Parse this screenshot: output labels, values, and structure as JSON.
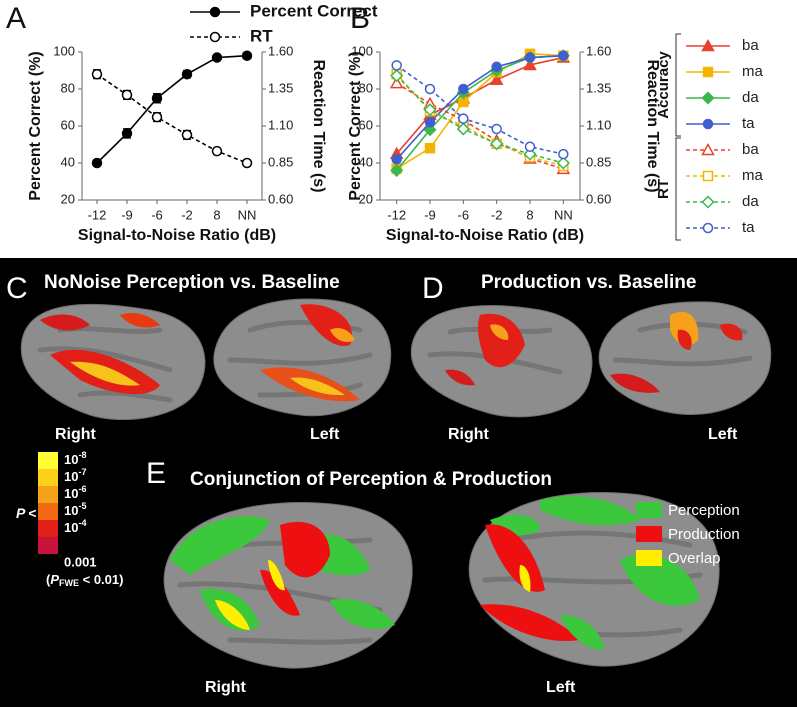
{
  "chart_data": [
    {
      "type": "line",
      "panel_label": "A",
      "categories": [
        "-12",
        "-9",
        "-6",
        "-2",
        "8",
        "NN"
      ],
      "xlabel": "Signal-to-Noise Ratio (dB)",
      "ylabel": "Percent Correct (%)",
      "y2label": "Reaction Time (s)",
      "ylim": [
        20,
        100
      ],
      "yticks": [
        20,
        40,
        60,
        80,
        100
      ],
      "y2lim": [
        0.6,
        1.6
      ],
      "y2ticks": [
        {
          "value": 0.6,
          "label": "0.60"
        },
        {
          "value": 0.85,
          "label": "0.85"
        },
        {
          "value": 1.1,
          "label": "1.10"
        },
        {
          "value": 1.35,
          "label": "1.35"
        },
        {
          "value": 1.6,
          "label": "1.60"
        }
      ],
      "legend": "top",
      "series": [
        {
          "name": "Percent Correct",
          "color": "#000000",
          "dash": false,
          "marker": "circle",
          "filled": true,
          "values": [
            40,
            56,
            75,
            88,
            97,
            98
          ],
          "errors": [
            1.5,
            2.5,
            2.5,
            2,
            1,
            1
          ]
        },
        {
          "name": "RT",
          "color": "#000000",
          "dash": true,
          "marker": "circle",
          "filled": false,
          "axis": "y2",
          "values": [
            1.45,
            1.31,
            1.16,
            1.04,
            0.93,
            0.85
          ],
          "errors": [
            0.03,
            0.03,
            0.03,
            0.03,
            0.02,
            0.02
          ]
        }
      ]
    },
    {
      "type": "line",
      "panel_label": "B",
      "categories": [
        "-12",
        "-9",
        "-6",
        "-2",
        "8",
        "NN"
      ],
      "xlabel": "Signal-to-Noise Ratio (dB)",
      "ylabel": "Percent Correct (%)",
      "y2label": "Reaction Time (s)",
      "ylim": [
        20,
        100
      ],
      "yticks": [
        20,
        40,
        60,
        80,
        100
      ],
      "y2lim": [
        0.6,
        1.6
      ],
      "y2ticks": [
        {
          "value": 0.6,
          "label": "0.60"
        },
        {
          "value": 0.85,
          "label": "0.85"
        },
        {
          "value": 1.1,
          "label": "1.10"
        },
        {
          "value": 1.35,
          "label": "1.35"
        },
        {
          "value": 1.6,
          "label": "1.60"
        }
      ],
      "legend": "right",
      "legend_groups": [
        "Accuracy",
        "RT"
      ],
      "series": [
        {
          "name": "ba",
          "group": 0,
          "color": "#e8412c",
          "dash": false,
          "marker": "triangle",
          "filled": true,
          "values": [
            45,
            66,
            75,
            85,
            93,
            97
          ]
        },
        {
          "name": "ma",
          "group": 0,
          "color": "#f5b400",
          "dash": false,
          "marker": "square",
          "filled": true,
          "values": [
            37,
            48,
            73,
            89,
            99,
            98
          ]
        },
        {
          "name": "da",
          "group": 0,
          "color": "#3cb84a",
          "dash": false,
          "marker": "diamond",
          "filled": true,
          "values": [
            36,
            58,
            78,
            90,
            97,
            98
          ]
        },
        {
          "name": "ta",
          "group": 0,
          "color": "#3f5fcf",
          "dash": false,
          "marker": "circle",
          "filled": true,
          "values": [
            42,
            62,
            80,
            92,
            97,
            98
          ]
        },
        {
          "name": "ba",
          "group": 1,
          "color": "#e8412c",
          "dash": true,
          "marker": "triangle",
          "filled": false,
          "axis": "y2",
          "values": [
            1.39,
            1.25,
            1.14,
            1.0,
            0.88,
            0.81
          ]
        },
        {
          "name": "ma",
          "group": 1,
          "color": "#f5b400",
          "dash": true,
          "marker": "square",
          "filled": false,
          "axis": "y2",
          "values": [
            1.45,
            1.2,
            1.1,
            0.98,
            0.89,
            0.83
          ]
        },
        {
          "name": "da",
          "group": 1,
          "color": "#3cb84a",
          "dash": true,
          "marker": "diamond",
          "filled": false,
          "axis": "y2",
          "values": [
            1.44,
            1.21,
            1.08,
            0.98,
            0.91,
            0.85
          ]
        },
        {
          "name": "ta",
          "group": 1,
          "color": "#3f5fcf",
          "dash": true,
          "marker": "circle",
          "filled": false,
          "axis": "y2",
          "values": [
            1.51,
            1.35,
            1.15,
            1.08,
            0.96,
            0.91
          ]
        }
      ]
    }
  ],
  "panels": {
    "c": {
      "letter": "C",
      "title": "NoNoise Perception vs. Baseline",
      "right": "Right",
      "left": "Left"
    },
    "d": {
      "letter": "D",
      "title": "Production vs. Baseline",
      "right": "Right",
      "left": "Left"
    },
    "e": {
      "letter": "E",
      "title": "Conjunction of Perception & Production",
      "right": "Right",
      "left": "Left",
      "legend": [
        "Perception",
        "Production",
        "Overlap"
      ]
    },
    "colorbar": {
      "p": "P",
      "lt": "<",
      "levels": [
        {
          "base": "10",
          "exp": "-8"
        },
        {
          "base": "10",
          "exp": "-7"
        },
        {
          "base": "10",
          "exp": "-6"
        },
        {
          "base": "10",
          "exp": "-5"
        },
        {
          "base": "10",
          "exp": "-4"
        }
      ],
      "last": "0.001",
      "note": [
        "(",
        "P",
        "FWE",
        " < 0.01)"
      ]
    }
  }
}
